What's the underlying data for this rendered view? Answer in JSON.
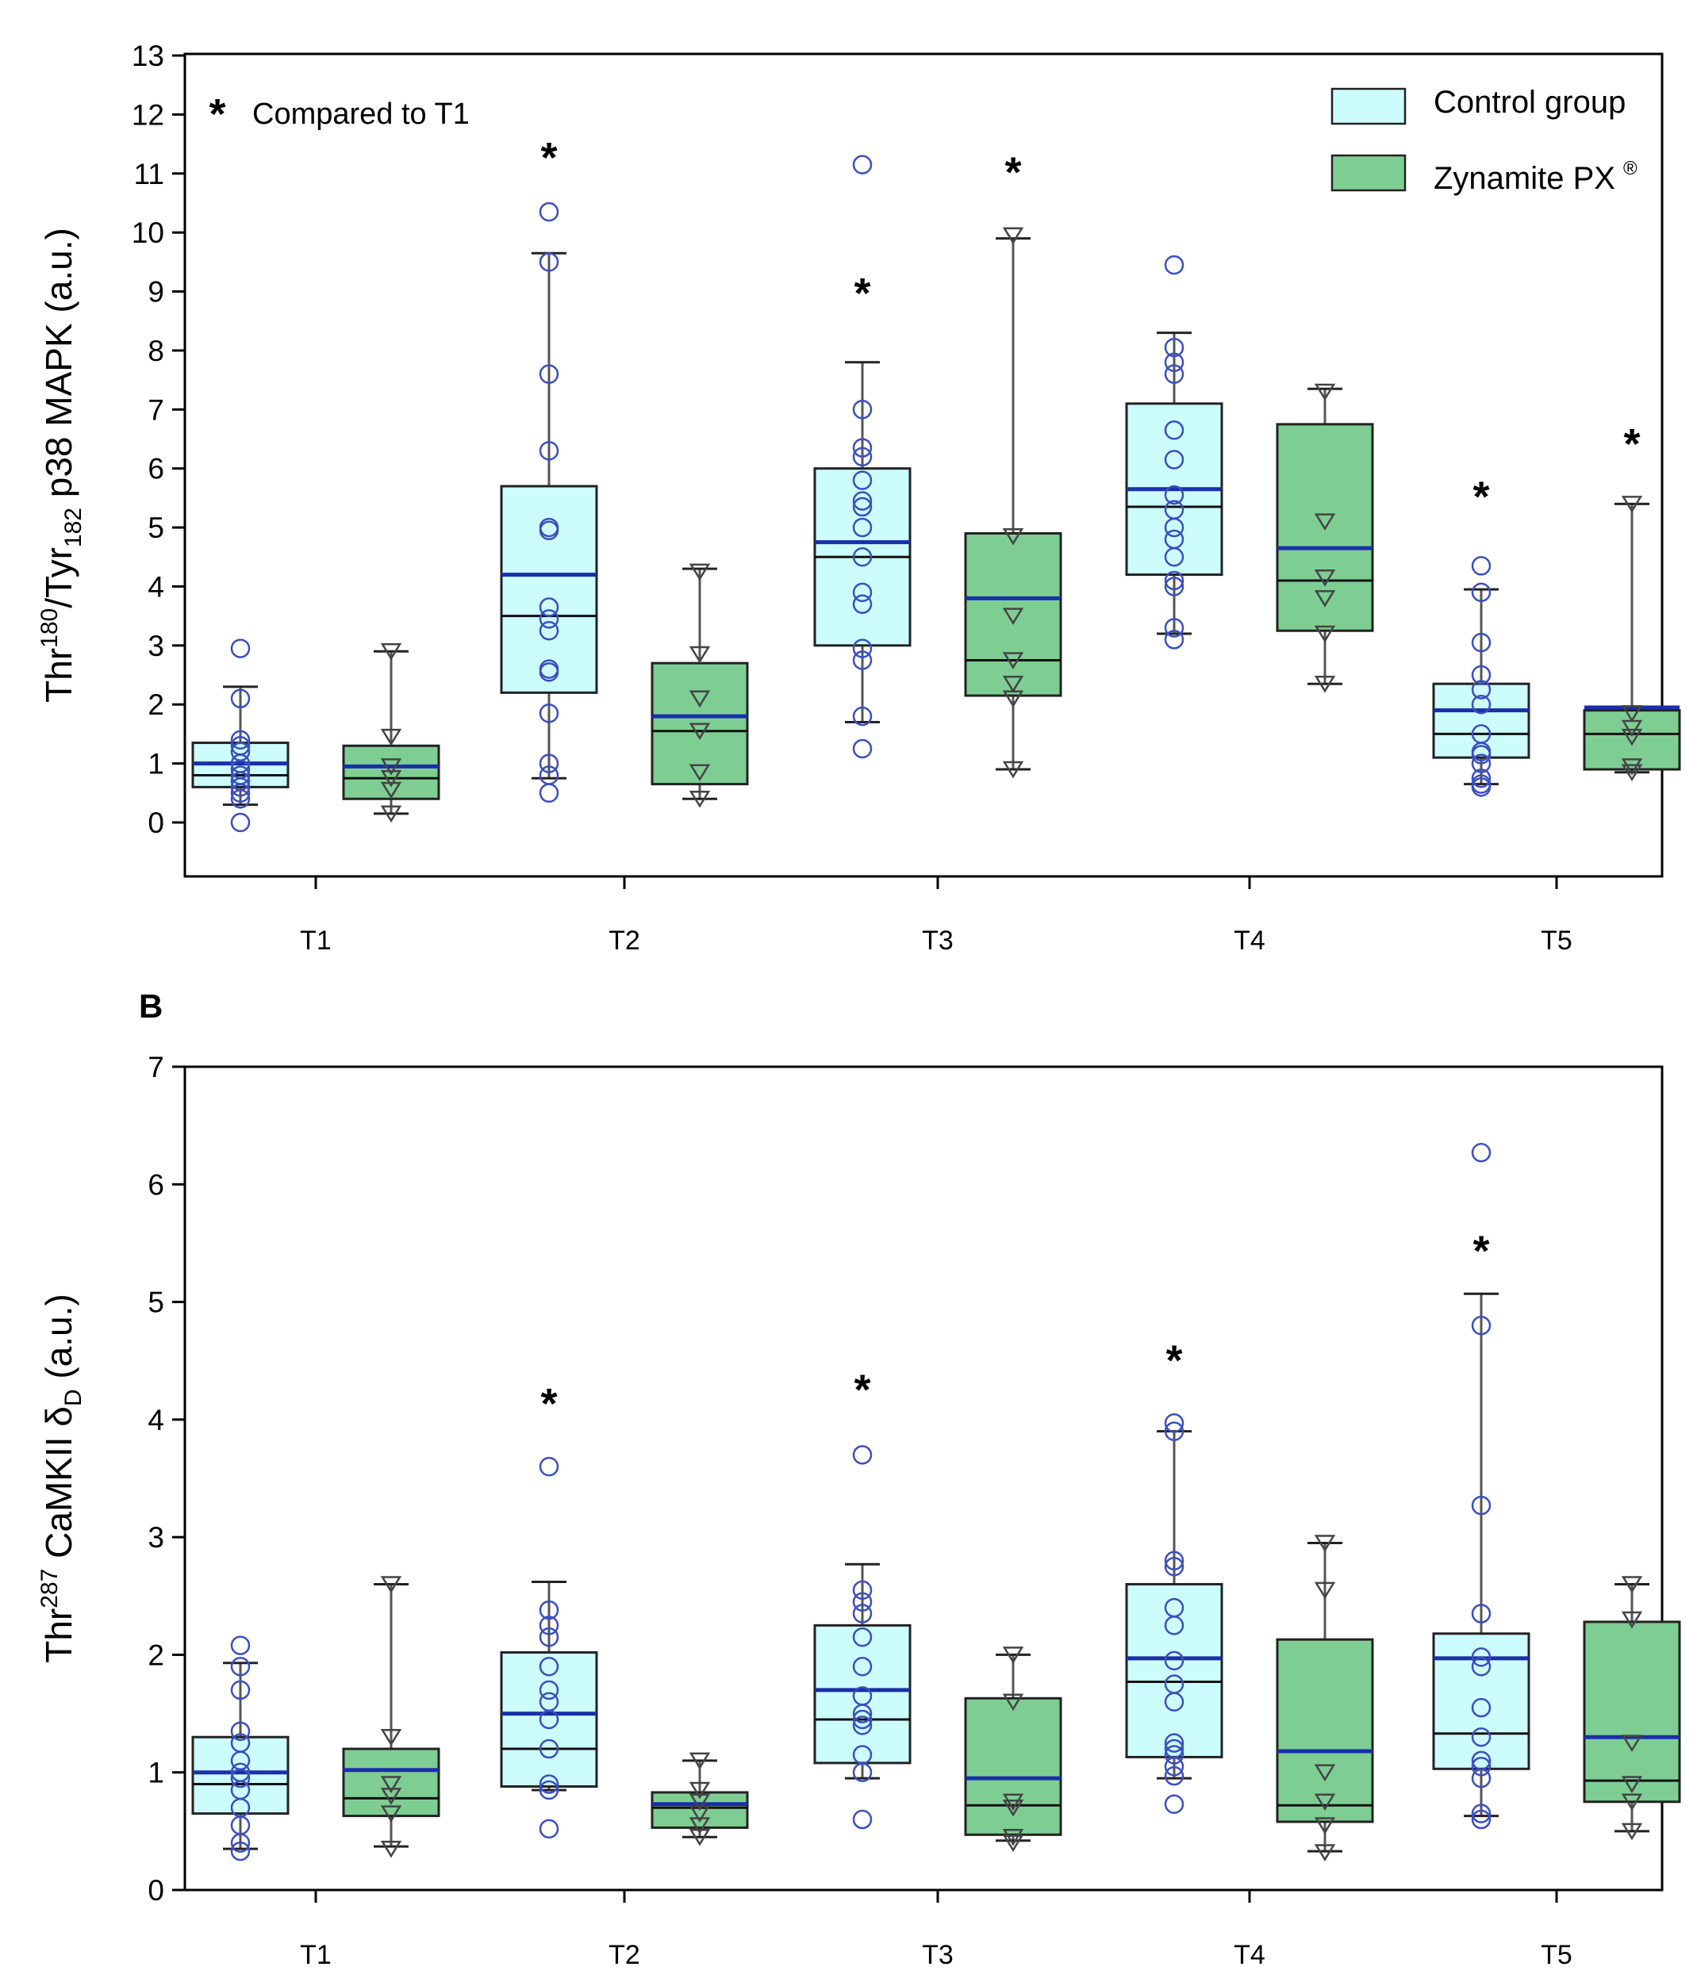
{
  "legend": {
    "note_symbol": "*",
    "note_text": "Compared to T1",
    "control_label": "Control group",
    "zynamite_label": "Zynamite PX",
    "zynamite_mark": "®"
  },
  "colors": {
    "control_fill": "#ccfcfc",
    "zynamite_fill": "#7ece94",
    "box_stroke": "#222222",
    "whisker_stroke": "#555555",
    "mean_line": "#1a2fa8",
    "control_points": "#3b4fbf",
    "zynamite_points": "#444444"
  },
  "chart_data": [
    {
      "panel": "A",
      "panel_label": "",
      "type": "box",
      "ylabel_parts": {
        "t1": "Thr",
        "s1": "180",
        "t2": "/Tyr",
        "s2": "182",
        "t3": " p38 MAPK (a.u.)"
      },
      "ylim": [
        -0.9,
        13
      ],
      "yticks": [
        "0",
        "1",
        "2",
        "3",
        "4",
        "5",
        "6",
        "7",
        "8",
        "9",
        "10",
        "11",
        "12",
        "13"
      ],
      "categories": [
        "T1",
        "T2",
        "T3",
        "T4",
        "T5"
      ],
      "series": [
        {
          "name": "Control group",
          "boxes": [
            {
              "q1": 0.6,
              "median": 0.8,
              "q3": 1.35,
              "mean": 1.0,
              "whisker_low": 0.3,
              "whisker_high": 2.3,
              "points": [
                0.0,
                0.4,
                0.5,
                0.6,
                0.7,
                0.8,
                0.9,
                1.0,
                1.2,
                1.3,
                1.4,
                2.1,
                2.95
              ]
            },
            {
              "q1": 2.2,
              "median": 3.5,
              "q3": 5.7,
              "mean": 4.2,
              "whisker_low": 0.75,
              "whisker_high": 9.65,
              "points": [
                0.5,
                0.8,
                1.0,
                1.85,
                2.55,
                2.6,
                3.25,
                3.45,
                3.65,
                4.95,
                5.0,
                6.3,
                7.6,
                9.5,
                10.35
              ]
            },
            {
              "q1": 3.0,
              "median": 4.5,
              "q3": 6.0,
              "mean": 4.75,
              "whisker_low": 1.7,
              "whisker_high": 7.8,
              "points": [
                1.25,
                1.8,
                2.75,
                2.95,
                3.7,
                3.9,
                4.5,
                5.0,
                5.35,
                5.45,
                5.8,
                6.2,
                6.35,
                7.0,
                11.15
              ]
            },
            {
              "q1": 4.2,
              "median": 5.35,
              "q3": 7.1,
              "mean": 5.65,
              "whisker_low": 3.2,
              "whisker_high": 8.3,
              "points": [
                3.1,
                3.3,
                4.0,
                4.1,
                4.5,
                4.8,
                5.0,
                5.3,
                5.55,
                6.15,
                6.65,
                7.6,
                7.8,
                8.05,
                9.45
              ]
            },
            {
              "q1": 1.1,
              "median": 1.5,
              "q3": 2.35,
              "mean": 1.9,
              "whisker_low": 0.65,
              "whisker_high": 3.95,
              "points": [
                0.6,
                0.65,
                0.75,
                1.0,
                1.15,
                1.2,
                1.5,
                2.0,
                2.25,
                2.5,
                3.05,
                3.9,
                4.35
              ]
            }
          ]
        },
        {
          "name": "Zynamite PX",
          "boxes": [
            {
              "q1": 0.4,
              "median": 0.75,
              "q3": 1.3,
              "mean": 0.95,
              "whisker_low": 0.15,
              "whisker_high": 2.9,
              "points": [
                0.15,
                0.55,
                0.75,
                0.95,
                1.45,
                2.9
              ]
            },
            {
              "q1": 0.65,
              "median": 1.55,
              "q3": 2.7,
              "mean": 1.8,
              "whisker_low": 0.4,
              "whisker_high": 4.3,
              "points": [
                0.4,
                0.85,
                1.55,
                2.1,
                2.85,
                4.25
              ]
            },
            {
              "q1": 2.15,
              "median": 2.75,
              "q3": 4.9,
              "mean": 3.8,
              "whisker_low": 0.9,
              "whisker_high": 9.9,
              "points": [
                0.9,
                2.1,
                2.35,
                2.75,
                3.5,
                4.85,
                9.95
              ]
            },
            {
              "q1": 3.25,
              "median": 4.1,
              "q3": 6.75,
              "mean": 4.65,
              "whisker_low": 2.35,
              "whisker_high": 7.35,
              "points": [
                2.35,
                3.2,
                3.8,
                4.15,
                5.1,
                7.3
              ]
            },
            {
              "q1": 0.9,
              "median": 1.5,
              "q3": 1.9,
              "mean": 1.95,
              "whisker_low": 0.85,
              "whisker_high": 5.4,
              "points": [
                0.85,
                0.95,
                1.45,
                1.6,
                1.85,
                5.4
              ]
            }
          ]
        }
      ],
      "stars": [
        {
          "category": "T2",
          "group": 0,
          "y": 11.4
        },
        {
          "category": "T3",
          "group": 0,
          "y": 9.1
        },
        {
          "category": "T3",
          "group": 1,
          "y": 11.15
        },
        {
          "category": "T5",
          "group": 0,
          "y": 5.65
        },
        {
          "category": "T5",
          "group": 1,
          "y": 6.55
        }
      ]
    },
    {
      "panel": "B",
      "panel_label": "B",
      "type": "box",
      "ylabel_parts": {
        "t1": "Thr",
        "s1": "287",
        "t2": " CaMKII δ",
        "s2": "D",
        "t3": " (a.u.)"
      },
      "ylim": [
        0,
        7
      ],
      "yticks": [
        "0",
        "1",
        "2",
        "3",
        "4",
        "5",
        "6",
        "7"
      ],
      "categories": [
        "T1",
        "T2",
        "T3",
        "T4",
        "T5"
      ],
      "series": [
        {
          "name": "Control group",
          "boxes": [
            {
              "q1": 0.65,
              "median": 0.9,
              "q3": 1.3,
              "mean": 1.0,
              "whisker_low": 0.35,
              "whisker_high": 1.93,
              "points": [
                0.33,
                0.4,
                0.55,
                0.7,
                0.85,
                0.95,
                1.0,
                1.1,
                1.25,
                1.35,
                1.7,
                1.9,
                2.08
              ]
            },
            {
              "q1": 0.88,
              "median": 1.2,
              "q3": 2.02,
              "mean": 1.5,
              "whisker_low": 0.85,
              "whisker_high": 2.62,
              "points": [
                0.52,
                0.85,
                0.9,
                1.2,
                1.45,
                1.6,
                1.7,
                1.9,
                2.15,
                2.25,
                2.38,
                3.6
              ]
            },
            {
              "q1": 1.08,
              "median": 1.45,
              "q3": 2.25,
              "mean": 1.7,
              "whisker_low": 0.95,
              "whisker_high": 2.77,
              "points": [
                0.6,
                1.0,
                1.15,
                1.4,
                1.45,
                1.5,
                1.65,
                1.9,
                2.15,
                2.35,
                2.45,
                2.55,
                3.7
              ]
            },
            {
              "q1": 1.13,
              "median": 1.77,
              "q3": 2.6,
              "mean": 1.97,
              "whisker_low": 0.95,
              "whisker_high": 3.9,
              "points": [
                0.73,
                0.97,
                1.05,
                1.15,
                1.2,
                1.25,
                1.6,
                1.75,
                1.95,
                2.25,
                2.4,
                2.75,
                2.8,
                3.9,
                3.97
              ]
            },
            {
              "q1": 1.03,
              "median": 1.33,
              "q3": 2.18,
              "mean": 1.97,
              "whisker_low": 0.63,
              "whisker_high": 5.07,
              "points": [
                0.6,
                0.65,
                0.95,
                1.05,
                1.1,
                1.3,
                1.55,
                1.9,
                1.98,
                2.35,
                3.27,
                4.8,
                6.27
              ]
            }
          ]
        },
        {
          "name": "Zynamite PX",
          "boxes": [
            {
              "q1": 0.63,
              "median": 0.78,
              "q3": 1.2,
              "mean": 1.02,
              "whisker_low": 0.37,
              "whisker_high": 2.6,
              "points": [
                0.35,
                0.65,
                0.8,
                0.9,
                1.3,
                2.6
              ]
            },
            {
              "q1": 0.53,
              "median": 0.7,
              "q3": 0.83,
              "mean": 0.73,
              "whisker_low": 0.45,
              "whisker_high": 1.1,
              "points": [
                0.45,
                0.55,
                0.65,
                0.75,
                0.85,
                1.1
              ]
            },
            {
              "q1": 0.47,
              "median": 0.72,
              "q3": 1.63,
              "mean": 0.95,
              "whisker_low": 0.42,
              "whisker_high": 2.0,
              "points": [
                0.4,
                0.45,
                0.7,
                0.75,
                1.6,
                2.0
              ]
            },
            {
              "q1": 0.58,
              "median": 0.72,
              "q3": 2.13,
              "mean": 1.18,
              "whisker_low": 0.33,
              "whisker_high": 2.95,
              "points": [
                0.32,
                0.55,
                0.75,
                1.0,
                2.55,
                2.95
              ]
            },
            {
              "q1": 0.75,
              "median": 0.93,
              "q3": 2.28,
              "mean": 1.3,
              "whisker_low": 0.5,
              "whisker_high": 2.6,
              "points": [
                0.5,
                0.75,
                0.9,
                1.25,
                2.3,
                2.6
              ]
            }
          ]
        }
      ],
      "stars": [
        {
          "category": "T2",
          "group": 0,
          "y": 4.2
        },
        {
          "category": "T3",
          "group": 0,
          "y": 4.32
        },
        {
          "category": "T4",
          "group": 0,
          "y": 4.57
        },
        {
          "category": "T5",
          "group": 0,
          "y": 5.5
        }
      ]
    }
  ]
}
